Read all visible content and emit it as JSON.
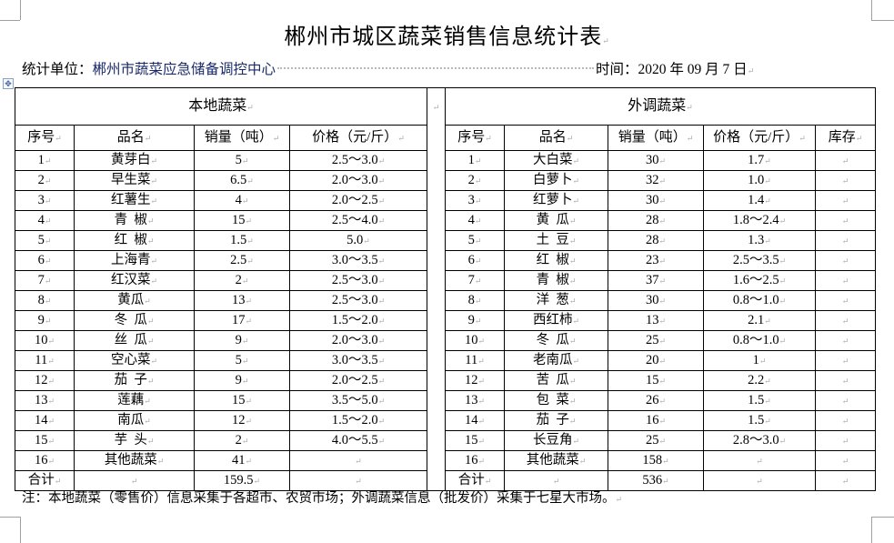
{
  "title": "郴州市城区蔬菜销售信息统计表",
  "meta": {
    "unit_label": "统计单位：",
    "unit_value": "郴州市蔬菜应急储备调控中心",
    "time_label": "时间：",
    "time_value": "2020 年 09 月 7 日"
  },
  "sections": {
    "local": "本地蔬菜",
    "external": "外调蔬菜"
  },
  "columns": {
    "local": [
      "序号",
      "品名",
      "销量（吨）",
      "价格（元/斤）"
    ],
    "external": [
      "序号",
      "品名",
      "销量（吨）",
      "价格（元/斤）",
      "库存"
    ]
  },
  "local_rows": [
    [
      "1",
      "黄芽白",
      "5",
      "2.5～3.0"
    ],
    [
      "2",
      "早生菜",
      "6.5",
      "2.0～3.0"
    ],
    [
      "3",
      "红薯生",
      "4",
      "2.0～2.5"
    ],
    [
      "4",
      "青  椒",
      "15",
      "2.5～4.0"
    ],
    [
      "5",
      "红  椒",
      "1.5",
      "5.0"
    ],
    [
      "6",
      "上海青",
      "2.5",
      "3.0～3.5"
    ],
    [
      "7",
      "红汉菜",
      "2",
      "2.5～3.0"
    ],
    [
      "8",
      "黄瓜",
      "13",
      "2.5～3.0"
    ],
    [
      "9",
      "冬  瓜",
      "17",
      "1.5～2.0"
    ],
    [
      "10",
      "丝  瓜",
      "9",
      "2.0～3.0"
    ],
    [
      "11",
      "空心菜",
      "5",
      "3.0～3.5"
    ],
    [
      "12",
      "茄  子",
      "9",
      "2.0～2.5"
    ],
    [
      "13",
      "莲藕",
      "15",
      "3.5～5.0"
    ],
    [
      "14",
      "南瓜",
      "12",
      "1.5～2.0"
    ],
    [
      "15",
      "芋  头",
      "2",
      "4.0～5.5"
    ],
    [
      "16",
      "其他蔬菜",
      "41",
      ""
    ],
    [
      "合计",
      "",
      "159.5",
      ""
    ]
  ],
  "external_rows": [
    [
      "1",
      "大白菜",
      "30",
      "1.7",
      ""
    ],
    [
      "2",
      "白萝卜",
      "32",
      "1.0",
      ""
    ],
    [
      "3",
      "红萝卜",
      "30",
      "1.4",
      ""
    ],
    [
      "4",
      "黄  瓜",
      "28",
      "1.8～2.4",
      ""
    ],
    [
      "5",
      "土  豆",
      "28",
      "1.3",
      ""
    ],
    [
      "6",
      "红  椒",
      "23",
      "2.5～3.5",
      ""
    ],
    [
      "7",
      "青  椒",
      "37",
      "1.6～2.5",
      ""
    ],
    [
      "8",
      "洋  葱",
      "30",
      "0.8～1.0",
      ""
    ],
    [
      "9",
      "西红柿",
      "13",
      "2.1",
      ""
    ],
    [
      "10",
      "冬  瓜",
      "25",
      "0.8～1.0",
      ""
    ],
    [
      "11",
      "老南瓜",
      "20",
      "1",
      ""
    ],
    [
      "12",
      "苦  瓜",
      "15",
      "2.2",
      ""
    ],
    [
      "13",
      "包  菜",
      "26",
      "1.5",
      ""
    ],
    [
      "14",
      "茄  子",
      "16",
      "1.5",
      ""
    ],
    [
      "15",
      "长豆角",
      "25",
      "2.8～3.0",
      ""
    ],
    [
      "16",
      "其他蔬菜",
      "158",
      "",
      ""
    ],
    [
      "合计",
      "",
      "536",
      "",
      ""
    ]
  ],
  "note": "注：本地蔬菜（零售价）信息采集于各超市、农贸市场；外调蔬菜信息（批发价）采集于七星大市场。"
}
